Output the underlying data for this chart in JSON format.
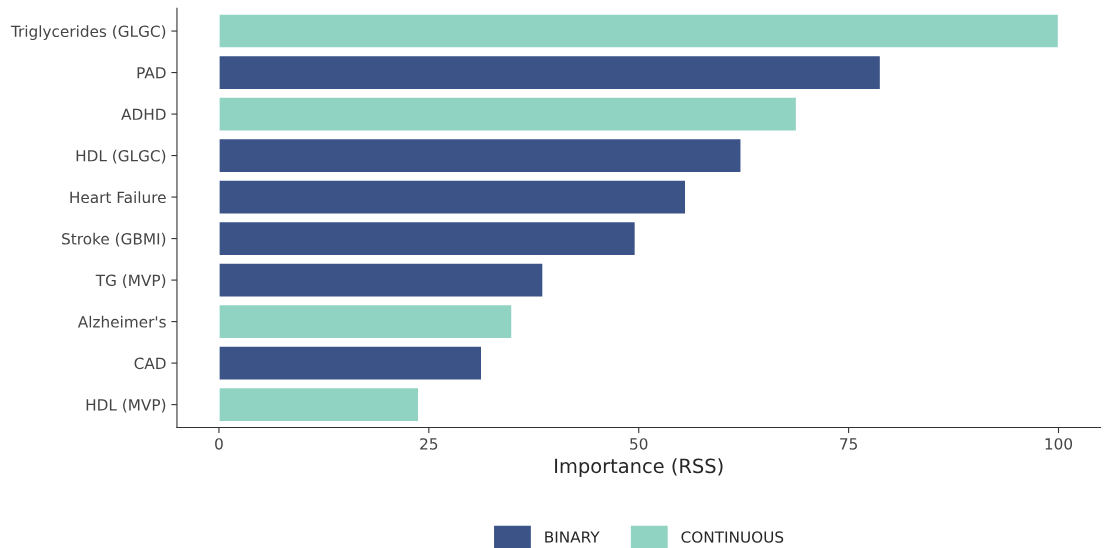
{
  "chart_data": {
    "type": "bar",
    "orientation": "horizontal",
    "xlabel": "Importance (RSS)",
    "categories": [
      "Triglycerides (GLGC)",
      "PAD",
      "ADHD",
      "HDL (GLGC)",
      "Heart Failure",
      "Stroke (GBMI)",
      "TG (MVP)",
      "Alzheimer's",
      "CAD",
      "HDL (MVP)"
    ],
    "series": [
      {
        "name": "BINARY",
        "color": "#3b5387",
        "values": [
          null,
          78.8,
          null,
          62.2,
          55.6,
          49.6,
          38.6,
          null,
          31.3,
          null
        ]
      },
      {
        "name": "CONTINUOUS",
        "color": "#91d3c3",
        "values": [
          100,
          null,
          68.8,
          null,
          null,
          null,
          null,
          34.9,
          null,
          23.8
        ]
      }
    ],
    "xlim": [
      -5,
      105
    ],
    "xticks": [
      0,
      25,
      50,
      75,
      100
    ],
    "grid": false,
    "legend": "bottom"
  }
}
